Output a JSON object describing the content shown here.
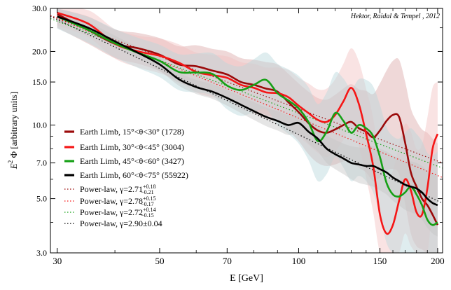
{
  "chart_data": {
    "type": "line",
    "xscale": "log",
    "yscale": "log",
    "xlim": [
      29,
      205
    ],
    "ylim": [
      3.0,
      30.0
    ],
    "xlabel": "E [GeV]",
    "ylabel_main": "E",
    "ylabel_sup": "2",
    "ylabel_rest": " Φ [arbitrary units]",
    "annotation": "Hektor, Raidal & Tempel , 2012",
    "xticks": [
      30,
      50,
      70,
      100,
      150,
      200
    ],
    "xtick_labels": [
      "30",
      "50",
      "70",
      "100",
      "150",
      "200"
    ],
    "yticks": [
      3.0,
      5.0,
      7.0,
      10.0,
      15.0,
      20.0,
      30.0
    ],
    "ytick_labels": [
      "3.0",
      "5.0",
      "7.0",
      "10.0",
      "15.0",
      "20.0",
      "30.0"
    ],
    "x": [
      30,
      35,
      40,
      45,
      50,
      55,
      60,
      65,
      70,
      75,
      80,
      85,
      90,
      95,
      100,
      105,
      110,
      115,
      120,
      125,
      130,
      135,
      140,
      145,
      150,
      155,
      160,
      165,
      170,
      175,
      180,
      185,
      190,
      195,
      200
    ],
    "series": [
      {
        "name": "Earth Limb, 15°<θ<30° (1728)",
        "color": "#9b0a0a",
        "band_color": "#dca9a9",
        "values": [
          28.4,
          24.5,
          21.5,
          20.6,
          19.4,
          17.7,
          17.4,
          16.7,
          16.1,
          15.0,
          14.6,
          14.1,
          13.7,
          12.4,
          11.3,
          10.2,
          9.5,
          9.3,
          9.6,
          10.0,
          10.3,
          9.7,
          9.4,
          8.9,
          9.5,
          10.4,
          11.0,
          10.8,
          8.5,
          6.4,
          5.6,
          5.0,
          4.7,
          4.3,
          3.9
        ],
        "band_lo": [
          25.0,
          21.5,
          18.8,
          17.8,
          16.6,
          14.9,
          14.3,
          13.6,
          13.0,
          12.0,
          11.5,
          11.0,
          10.6,
          9.5,
          8.6,
          7.6,
          7.0,
          6.8,
          6.9,
          7.1,
          7.2,
          6.7,
          6.4,
          5.9,
          6.1,
          6.5,
          6.6,
          6.3,
          4.8,
          3.6,
          3.2,
          3.1,
          3.0,
          3.0,
          3.0
        ],
        "band_hi": [
          30.0,
          27.8,
          24.6,
          23.8,
          22.7,
          21.0,
          21.2,
          20.5,
          20.0,
          18.8,
          18.5,
          18.1,
          17.7,
          16.2,
          14.8,
          13.7,
          12.9,
          12.7,
          13.3,
          14.1,
          14.7,
          14.0,
          13.8,
          13.4,
          14.8,
          16.7,
          18.3,
          18.5,
          15.1,
          11.7,
          10.4,
          9.6,
          9.3,
          8.8,
          8.4
        ]
      },
      {
        "name": "Earth Limb, 30°<θ<45° (3004)",
        "color": "#f51616",
        "band_color": "#f1c1c1",
        "values": [
          28.8,
          26.0,
          21.5,
          20.0,
          19.2,
          18.0,
          16.5,
          16.0,
          15.6,
          14.6,
          14.2,
          13.6,
          13.5,
          13.0,
          12.0,
          11.2,
          10.5,
          10.3,
          11.0,
          12.5,
          14.2,
          12.2,
          9.2,
          6.8,
          4.3,
          3.6,
          3.9,
          4.9,
          6.0,
          5.4,
          4.4,
          4.3,
          5.5,
          8.0,
          9.2
        ],
        "band_lo": [
          25.5,
          22.9,
          18.7,
          17.2,
          16.3,
          15.1,
          13.6,
          13.0,
          12.6,
          11.6,
          11.2,
          10.6,
          10.4,
          9.9,
          9.0,
          8.3,
          7.7,
          7.4,
          7.8,
          8.7,
          9.7,
          8.2,
          6.1,
          4.4,
          3.0,
          3.0,
          3.0,
          3.0,
          3.6,
          3.2,
          3.0,
          3.0,
          3.0,
          4.5,
          5.2
        ],
        "band_hi": [
          30.0,
          29.5,
          24.7,
          23.2,
          22.6,
          21.4,
          19.8,
          19.4,
          19.1,
          18.1,
          17.8,
          17.2,
          17.2,
          16.8,
          15.6,
          14.8,
          14.0,
          14.1,
          15.4,
          17.8,
          20.6,
          18.2,
          14.1,
          10.7,
          7.0,
          6.0,
          6.5,
          8.3,
          10.1,
          9.4,
          8.0,
          8.3,
          10.7,
          14.2,
          15.0
        ]
      },
      {
        "name": "Earth Limb, 45°<θ<60° (3427)",
        "color": "#16a016",
        "band_color": "#b8d8dc",
        "values": [
          27.8,
          24.5,
          21.6,
          19.7,
          18.3,
          16.5,
          16.4,
          16.2,
          14.5,
          13.9,
          14.6,
          15.3,
          13.5,
          12.6,
          11.7,
          10.3,
          8.6,
          9.4,
          11.2,
          10.4,
          9.3,
          10.0,
          9.7,
          9.0,
          7.4,
          5.8,
          5.2,
          5.1,
          5.3,
          5.6,
          5.2,
          4.7,
          4.1,
          3.9,
          4.0
        ],
        "band_lo": [
          24.8,
          21.7,
          18.9,
          17.1,
          15.7,
          13.9,
          13.6,
          13.2,
          11.6,
          10.9,
          11.3,
          11.6,
          10.0,
          9.2,
          8.4,
          7.2,
          5.9,
          6.3,
          7.4,
          6.7,
          5.9,
          6.2,
          5.9,
          5.3,
          4.3,
          3.3,
          3.0,
          3.0,
          3.0,
          3.0,
          3.0,
          3.0,
          3.0,
          3.0,
          3.0
        ],
        "band_hi": [
          30.0,
          27.7,
          24.7,
          22.7,
          21.3,
          19.5,
          19.6,
          19.7,
          17.9,
          17.4,
          18.6,
          19.8,
          17.8,
          16.9,
          15.9,
          14.3,
          12.2,
          13.6,
          16.4,
          15.5,
          14.1,
          15.4,
          15.3,
          14.4,
          12.1,
          9.8,
          9.0,
          8.8,
          9.3,
          9.7,
          9.2,
          8.6,
          7.7,
          7.5,
          7.8
        ]
      },
      {
        "name": "Earth Limb, 60°<θ<75° (55922)",
        "color": "#000000",
        "band_color": "#c6c6c6",
        "values": [
          27.8,
          25.0,
          22.0,
          19.7,
          17.7,
          15.4,
          14.3,
          13.7,
          12.9,
          12.1,
          11.4,
          10.8,
          10.4,
          10.0,
          10.2,
          9.4,
          8.8,
          8.0,
          7.6,
          7.3,
          7.0,
          6.9,
          6.8,
          6.8,
          6.6,
          6.4,
          6.1,
          5.9,
          5.7,
          5.6,
          5.5,
          5.3,
          5.0,
          4.8,
          4.7
        ],
        "band_lo": [
          26.5,
          23.8,
          20.9,
          18.7,
          16.7,
          14.5,
          13.4,
          12.8,
          12.0,
          11.2,
          10.5,
          9.9,
          9.5,
          9.1,
          9.2,
          8.4,
          7.8,
          7.0,
          6.6,
          6.3,
          6.0,
          5.8,
          5.7,
          5.6,
          5.4,
          5.2,
          4.9,
          4.7,
          4.5,
          4.4,
          4.3,
          4.1,
          3.8,
          3.6,
          3.5
        ],
        "band_hi": [
          29.2,
          26.3,
          23.2,
          20.8,
          18.8,
          16.4,
          15.3,
          14.7,
          13.9,
          13.1,
          12.4,
          11.8,
          11.4,
          11.0,
          11.3,
          10.5,
          9.9,
          9.1,
          8.7,
          8.4,
          8.2,
          8.1,
          8.1,
          8.2,
          8.0,
          7.8,
          7.5,
          7.3,
          7.1,
          7.1,
          7.0,
          6.8,
          6.5,
          6.3,
          6.2
        ]
      }
    ],
    "powerlaws": [
      {
        "name_prefix": "Power-law, γ=2.71",
        "sup": "+0.18",
        "sub": "−0.21",
        "gamma": 2.71,
        "norm_at_30": 27.4,
        "color": "#9b0a0a"
      },
      {
        "name_prefix": "Power-law, γ=2.78",
        "sup": "+0.15",
        "sub": "−0.17",
        "gamma": 2.78,
        "norm_at_30": 27.3,
        "color": "#f51616"
      },
      {
        "name_prefix": "Power-law, γ=2.72",
        "sup": "+0.14",
        "sub": "−0.15",
        "gamma": 2.72,
        "norm_at_30": 26.6,
        "color": "#16a016"
      },
      {
        "name_prefix": "Power-law, γ=2.90±0.04",
        "sup": "",
        "sub": "",
        "gamma": 2.9,
        "norm_at_30": 27.0,
        "color": "#000000"
      }
    ],
    "legend_position": "left"
  }
}
